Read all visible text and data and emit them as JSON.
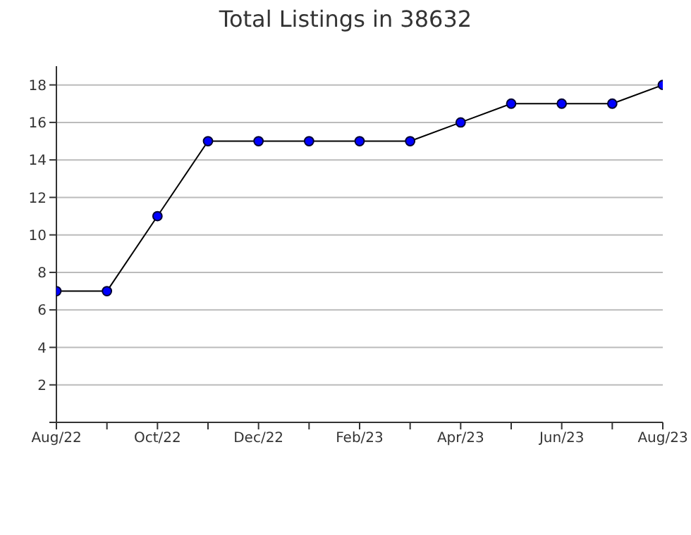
{
  "chart_data": {
    "type": "line",
    "title": "Total Listings in 38632",
    "x": [
      "2022-08",
      "2022-09",
      "2022-10",
      "2022-11",
      "2022-12",
      "2023-01",
      "2023-02",
      "2023-03",
      "2023-04",
      "2023-05",
      "2023-06",
      "2023-07",
      "2023-08"
    ],
    "series": [
      {
        "color": "#0000ff",
        "values": [
          7,
          7,
          11,
          15,
          15,
          15,
          15,
          15,
          16,
          17,
          17,
          17,
          18
        ]
      }
    ],
    "xlim": [
      "2022-08",
      "2023-08"
    ],
    "xticks": [
      {
        "value": "2022-08",
        "label": "Aug/22"
      },
      {
        "value": "2022-09",
        "label": null
      },
      {
        "value": "2022-10",
        "label": "Oct/22"
      },
      {
        "value": "2022-11",
        "label": null
      },
      {
        "value": "2022-12",
        "label": "Dec/22"
      },
      {
        "value": "2023-01",
        "label": null
      },
      {
        "value": "2023-02",
        "label": "Feb/23"
      },
      {
        "value": "2023-03",
        "label": null
      },
      {
        "value": "2023-04",
        "label": "Apr/23"
      },
      {
        "value": "2023-05",
        "label": null
      },
      {
        "value": "2023-06",
        "label": "Jun/23"
      },
      {
        "value": "2023-07",
        "label": null
      },
      {
        "value": "2023-08",
        "label": "Aug/23"
      }
    ],
    "ylim": [
      0,
      19
    ],
    "yticks": [
      {
        "value": 0,
        "label": null
      },
      2,
      4,
      6,
      8,
      10,
      12,
      14,
      16,
      18
    ],
    "grid": "y",
    "marker": "circle",
    "line_style": "solid",
    "legend": false
  }
}
